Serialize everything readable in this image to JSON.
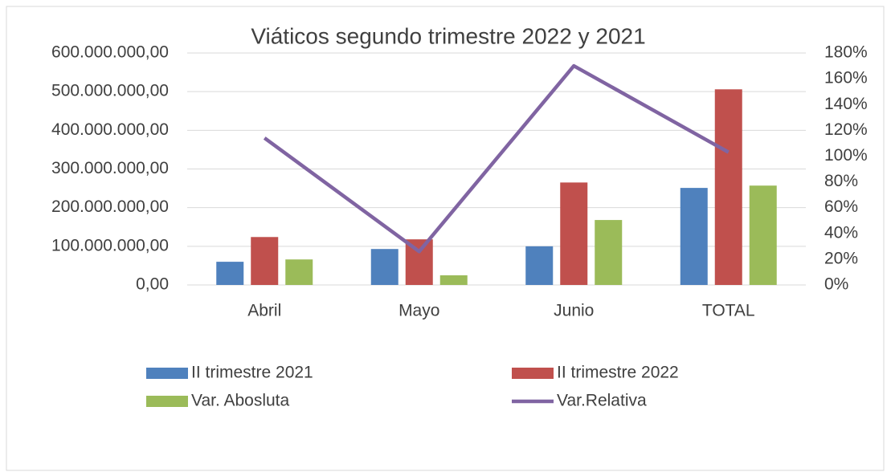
{
  "chart_data": {
    "type": "bar",
    "title": "Viáticos segundo trimestre 2022 y 2021",
    "categories": [
      "Abril",
      "Mayo",
      "Junio",
      "TOTAL"
    ],
    "series": [
      {
        "name": "II trimestre 2021",
        "color": "#4f81bd",
        "values": [
          60000000,
          93000000,
          100000000,
          251000000
        ]
      },
      {
        "name": "II trimestre 2022",
        "color": "#c0504d",
        "values": [
          124000000,
          118000000,
          265000000,
          506000000
        ]
      },
      {
        "name": "Var. Abosluta",
        "color": "#9bbb59",
        "values": [
          66000000,
          25000000,
          168000000,
          257000000
        ]
      },
      {
        "name": "Var.Relativa",
        "color": "#8064a2",
        "type": "line",
        "axis": "y2",
        "values": [
          114,
          26,
          170,
          103
        ]
      }
    ],
    "ylim": [
      0,
      600000000
    ],
    "yticks": [
      {
        "value": 0,
        "label": "0,00"
      },
      {
        "value": 100000000,
        "label": "100.000.000,00"
      },
      {
        "value": 200000000,
        "label": "200.000.000,00"
      },
      {
        "value": 300000000,
        "label": "300.000.000,00"
      },
      {
        "value": 400000000,
        "label": "400.000.000,00"
      },
      {
        "value": 500000000,
        "label": "500.000.000,00"
      },
      {
        "value": 600000000,
        "label": "600.000.000,00"
      }
    ],
    "y2lim": [
      0,
      180
    ],
    "y2ticks": [
      {
        "value": 0,
        "label": "0%"
      },
      {
        "value": 20,
        "label": "20%"
      },
      {
        "value": 40,
        "label": "40%"
      },
      {
        "value": 60,
        "label": "60%"
      },
      {
        "value": 80,
        "label": "80%"
      },
      {
        "value": 100,
        "label": "100%"
      },
      {
        "value": 120,
        "label": "120%"
      },
      {
        "value": 140,
        "label": "140%"
      },
      {
        "value": 160,
        "label": "160%"
      },
      {
        "value": 180,
        "label": "180%"
      }
    ],
    "grid": true
  }
}
